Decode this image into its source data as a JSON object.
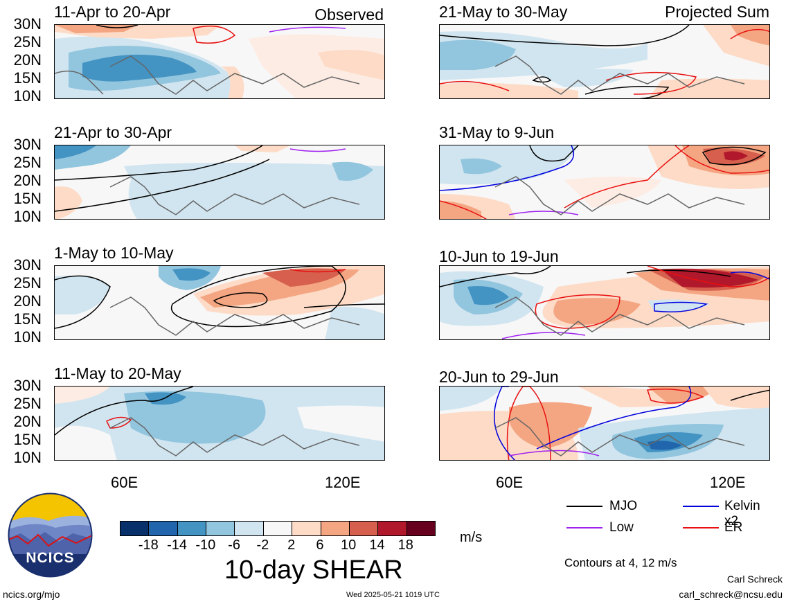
{
  "panels": [
    {
      "title": "11-Apr to 20-Apr",
      "corner_label": "Observed"
    },
    {
      "title": "21-Apr to 30-Apr",
      "corner_label": ""
    },
    {
      "title": "1-May to 10-May",
      "corner_label": ""
    },
    {
      "title": "11-May to 20-May",
      "corner_label": ""
    },
    {
      "title": "21-May to 30-May",
      "corner_label": "Projected Sum"
    },
    {
      "title": "31-May to 9-Jun",
      "corner_label": ""
    },
    {
      "title": "10-Jun to 19-Jun",
      "corner_label": ""
    },
    {
      "title": "20-Jun to 29-Jun",
      "corner_label": ""
    }
  ],
  "lat_ticks": [
    "30N",
    "25N",
    "20N",
    "15N",
    "10N"
  ],
  "lon_ticks": [
    "60E",
    "120E"
  ],
  "colorbar": {
    "labels": [
      "-18",
      "-14",
      "-10",
      "-6",
      "-2",
      "2",
      "6",
      "10",
      "14",
      "18"
    ],
    "colors": [
      "#08306b",
      "#2166ac",
      "#4393c3",
      "#92c5de",
      "#d1e5f0",
      "#f7f7f7",
      "#fddbc7",
      "#f4a582",
      "#d6604d",
      "#b2182b",
      "#67001f"
    ],
    "units": "m/s",
    "title": "10-day SHEAR"
  },
  "legend": {
    "items": [
      {
        "label": "MJO",
        "color": "#000000"
      },
      {
        "label": "Kelvin x2",
        "color": "#0000dd"
      },
      {
        "label": "Low",
        "color": "#a020f0"
      },
      {
        "label": "ER",
        "color": "#e81010"
      }
    ],
    "contour_note": "Contours at 4, 12 m/s"
  },
  "logo": {
    "text": "NCICS"
  },
  "footer": {
    "url": "ncics.org/mjo",
    "timestamp": "Wed 2025-05-21 1019 UTC",
    "author": "Carl Schreck",
    "email": "carl_schreck@ncsu.edu"
  }
}
